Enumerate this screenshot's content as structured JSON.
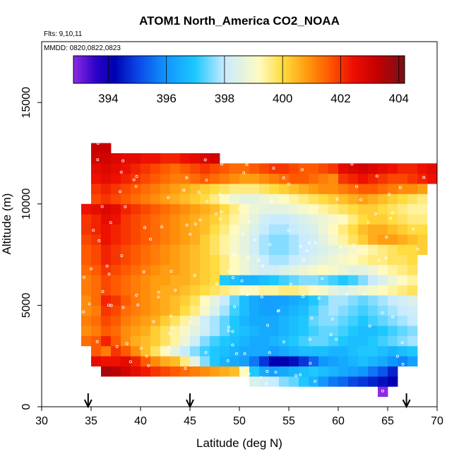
{
  "chart_data": {
    "type": "heatmap",
    "title": "ATOM1 North_America CO2_NOAA",
    "annotation_flights": "Flts: 9,10,11",
    "annotation_dates": "MMDD: 0820,0822,0823",
    "xlabel": "Latitude (deg N)",
    "ylabel": "Altitude (m)",
    "xlim": [
      30,
      70
    ],
    "ylim": [
      0,
      18000
    ],
    "x_ticks": [
      30,
      35,
      40,
      45,
      50,
      55,
      60,
      65,
      70
    ],
    "y_ticks": [
      0,
      5000,
      10000,
      15000
    ],
    "colorbar": {
      "range": [
        392.8,
        404.2
      ],
      "ticks": [
        394,
        396,
        398,
        400,
        402,
        404
      ],
      "stops": [
        {
          "v": 392.8,
          "c": "#8a2be2"
        },
        {
          "v": 393.6,
          "c": "#2a00c8"
        },
        {
          "v": 394.2,
          "c": "#0000b0"
        },
        {
          "v": 395.0,
          "c": "#0a46e6"
        },
        {
          "v": 396.0,
          "c": "#1096ff"
        },
        {
          "v": 397.0,
          "c": "#1ec8ff"
        },
        {
          "v": 398.0,
          "c": "#c8ebff"
        },
        {
          "v": 399.2,
          "c": "#fffac0"
        },
        {
          "v": 400.0,
          "c": "#ffdc40"
        },
        {
          "v": 400.8,
          "c": "#ff9e10"
        },
        {
          "v": 401.6,
          "c": "#ff5a00"
        },
        {
          "v": 402.4,
          "c": "#ee1000"
        },
        {
          "v": 403.2,
          "c": "#c80000"
        },
        {
          "v": 404.2,
          "c": "#781018"
        }
      ]
    },
    "arrows_latitude": [
      34.7,
      45.0,
      66.9
    ],
    "grid": {
      "lat_min": 34,
      "lat_step": 1,
      "alt_min": 500,
      "alt_step": 500,
      "layers": [
        {
          "alt": 500,
          "from": 64,
          "to": 65,
          "vals": [
            392.8
          ]
        },
        {
          "alt": 1000,
          "from": 51,
          "to": 66,
          "vals": [
            398.4,
            398.2,
            398,
            397.6,
            397.4,
            397,
            396.6,
            396,
            395.6,
            395.4,
            395,
            394.8,
            394.6,
            394.4,
            394.2
          ]
        },
        {
          "alt": 1500,
          "from": 36,
          "to": 66,
          "vals": [
            403.6,
            403.4,
            403,
            402.6,
            402.3,
            402,
            401.8,
            401.6,
            401.4,
            401.2,
            401,
            400.8,
            400.6,
            400.4,
            399.2,
            397,
            396.4,
            396.2,
            396.4,
            396.6,
            396.8,
            397,
            396.8,
            396.6,
            396.4,
            396.2,
            396,
            395.6,
            395.2,
            394.6
          ]
        },
        {
          "alt": 2000,
          "from": 35,
          "to": 68,
          "vals": [
            402.6,
            402.4,
            402.4,
            402.6,
            402.2,
            401.6,
            401,
            400.6,
            400.4,
            399.6,
            398.6,
            397.6,
            397,
            396.6,
            396.4,
            396.2,
            395.6,
            394.8,
            394.2,
            394.2,
            394.4,
            394.8,
            395.4,
            396,
            396.2,
            396.4,
            396.6,
            396.8,
            396.6,
            396.4,
            396,
            395.8,
            396.2
          ]
        },
        {
          "alt": 2500,
          "from": 35,
          "to": 68,
          "vals": [
            401.6,
            401.2,
            402,
            401.6,
            401,
            400.4,
            399.8,
            399.2,
            398.6,
            398,
            397.6,
            397.2,
            397,
            396.8,
            396.6,
            396.4,
            396.4,
            396.4,
            396.2,
            396.4,
            396.6,
            396.8,
            396.8,
            396.8,
            396.6,
            396.6,
            396.8,
            397,
            397,
            396.8,
            396.6,
            396.8,
            397
          ]
        },
        {
          "alt": 3000,
          "from": 34,
          "to": 68,
          "vals": [
            401.4,
            401.6,
            402.2,
            401.6,
            401,
            400.6,
            400.4,
            400.2,
            399.8,
            399.4,
            398.8,
            398.2,
            397.6,
            397.2,
            397,
            396.8,
            396.6,
            396.4,
            396.4,
            396.6,
            396.8,
            397,
            397.2,
            397.4,
            397.4,
            397.2,
            397,
            396.8,
            396.8,
            397,
            397.2,
            397.4,
            397.6,
            397.8
          ]
        },
        {
          "alt": 3500,
          "from": 34,
          "to": 68,
          "vals": [
            401,
            401.2,
            401.6,
            401.4,
            401,
            400.8,
            400.6,
            400.2,
            399.8,
            399.4,
            399,
            398.6,
            398.2,
            397.8,
            397.4,
            397,
            396.8,
            396.6,
            396.4,
            396.4,
            396.6,
            396.8,
            397,
            397.2,
            397.4,
            397.4,
            397.2,
            397,
            396.8,
            396.8,
            397,
            397.2,
            397.4,
            397.6
          ]
        },
        {
          "alt": 4000,
          "from": 34,
          "to": 68,
          "vals": [
            401.2,
            401.4,
            401.8,
            401.6,
            401.2,
            401,
            400.8,
            400.6,
            400.2,
            399.8,
            399.4,
            398.8,
            398.2,
            397.8,
            397.4,
            397,
            396.6,
            396.4,
            396.4,
            396.4,
            396.6,
            396.8,
            397,
            397.4,
            397.6,
            397.6,
            397.4,
            397.2,
            397,
            397.2,
            397.4,
            397.6,
            397.8,
            398
          ]
        },
        {
          "alt": 4500,
          "from": 34,
          "to": 68,
          "vals": [
            401,
            401.2,
            402,
            401.8,
            401.4,
            401.2,
            401,
            400.8,
            400.6,
            400.4,
            400,
            399.6,
            399,
            398.4,
            397.8,
            397.2,
            396.8,
            396.4,
            396.2,
            396.2,
            396.4,
            396.6,
            396.8,
            397.2,
            397.6,
            397.8,
            397.6,
            397.4,
            397.2,
            397.4,
            397.6,
            397.8,
            398,
            398.2
          ]
        },
        {
          "alt": 5000,
          "from": 34,
          "to": 68,
          "vals": [
            401,
            401.4,
            402.2,
            402,
            401.6,
            401.2,
            401,
            400.8,
            400.6,
            400.4,
            400.2,
            399.8,
            399.2,
            398.6,
            398,
            397.4,
            396.8,
            396.4,
            396.2,
            396.2,
            396.2,
            396.4,
            396.6,
            397,
            397.4,
            397.8,
            397.8,
            397.6,
            397.4,
            397.6,
            397.8,
            398,
            398.2,
            398.4
          ]
        },
        {
          "alt": 5500,
          "from": 34,
          "to": 68,
          "vals": [
            401.2,
            401.4,
            401.8,
            401.6,
            401.4,
            401.2,
            401,
            400.8,
            400.6,
            400.6,
            400.4,
            400.2,
            400,
            399.8,
            399.6,
            399.4,
            399.2,
            399.2,
            399.4,
            399.4,
            399.6,
            399.6,
            399.4,
            399.2,
            399,
            398.6,
            398.4,
            398.6,
            398.8,
            399,
            399.2,
            399.4,
            399.6,
            399.8
          ]
        },
        {
          "alt": 6000,
          "from": 34,
          "to": 68,
          "vals": [
            401.2,
            401.4,
            401.8,
            401.6,
            401.4,
            401.2,
            401,
            400.8,
            400.8,
            400.6,
            400.6,
            400.4,
            400.2,
            400,
            397,
            396.8,
            396.6,
            396.6,
            396.8,
            397,
            397.2,
            397.4,
            397.6,
            397.6,
            397.4,
            397.2,
            397,
            397.2,
            397.6,
            398,
            398.4,
            398.8,
            399.2,
            399.4
          ]
        },
        {
          "alt": 6500,
          "from": 34,
          "to": 68,
          "vals": [
            401.4,
            401.6,
            402,
            401.8,
            401.6,
            401.4,
            401.2,
            401,
            400.8,
            400.8,
            400.6,
            400.4,
            400.2,
            400,
            399.6,
            399.2,
            398.8,
            398.4,
            398.2,
            398.2,
            398.4,
            398.6,
            398.8,
            399,
            399.2,
            399,
            398.8,
            398.6,
            398.6,
            398.8,
            399.2,
            399.4,
            399.6,
            399.8
          ]
        },
        {
          "alt": 7000,
          "from": 34,
          "to": 68,
          "vals": [
            401.6,
            401.8,
            402.2,
            402,
            401.8,
            401.6,
            401.4,
            401.2,
            401,
            400.8,
            400.6,
            400.4,
            400.2,
            400,
            399.6,
            399.2,
            398.8,
            398.4,
            398,
            397.8,
            397.8,
            398,
            398.2,
            398.4,
            398.6,
            398.8,
            399,
            399.2,
            399.4,
            399.6,
            399.6,
            399.8,
            399.8,
            400
          ]
        },
        {
          "alt": 7500,
          "from": 34,
          "to": 69,
          "vals": [
            401.6,
            401.8,
            402.2,
            402,
            401.8,
            401.6,
            401.4,
            401.2,
            401,
            400.8,
            400.6,
            400.4,
            400.2,
            399.8,
            399.4,
            399,
            398.6,
            398.2,
            397.8,
            397.6,
            397.6,
            397.8,
            398,
            398.2,
            398.4,
            398.6,
            398.8,
            399,
            399.2,
            399.4,
            399.6,
            399.8,
            400,
            400,
            400.2
          ]
        },
        {
          "alt": 8000,
          "from": 34,
          "to": 69,
          "vals": [
            401.8,
            402,
            402.4,
            402.2,
            402,
            401.8,
            401.6,
            401.4,
            401.2,
            401,
            400.8,
            400.6,
            400.2,
            399.8,
            399.4,
            399,
            398.6,
            398.2,
            397.8,
            397.6,
            397.6,
            397.8,
            398,
            398.2,
            398.6,
            399,
            399.4,
            399.8,
            400.2,
            400.6,
            400.8,
            400.8,
            400.6,
            400.4,
            400.2
          ]
        },
        {
          "alt": 8500,
          "from": 34,
          "to": 69,
          "vals": [
            402,
            402.2,
            402.4,
            402.2,
            402,
            401.8,
            401.6,
            401.4,
            401.2,
            401,
            400.8,
            400.6,
            400.4,
            400,
            399.6,
            399.2,
            398.8,
            398.4,
            398,
            397.8,
            397.8,
            398,
            398.2,
            398.4,
            398.8,
            399.2,
            399.6,
            400,
            400.4,
            400.6,
            400.6,
            400.4,
            400.2,
            400,
            400
          ]
        },
        {
          "alt": 9000,
          "from": 34,
          "to": 69,
          "vals": [
            402,
            402.2,
            402.6,
            402.4,
            402,
            401.8,
            401.6,
            401.4,
            401.2,
            401,
            400.8,
            400.6,
            400.4,
            400.2,
            399.8,
            399.4,
            399,
            398.6,
            398.2,
            398,
            398,
            398.2,
            398.4,
            398.6,
            398.8,
            399,
            399.2,
            399.6,
            400,
            400.2,
            400.2,
            400,
            399.8,
            399.6,
            399.6
          ]
        },
        {
          "alt": 9500,
          "from": 34,
          "to": 69,
          "vals": [
            402.4,
            402.6,
            402.8,
            402.6,
            402.2,
            402,
            401.8,
            401.6,
            401.4,
            401.2,
            401,
            400.8,
            400.6,
            400.4,
            400,
            399.6,
            399.2,
            398.8,
            398.6,
            398.6,
            398.6,
            398.8,
            399,
            399.2,
            399.4,
            399.6,
            399.8,
            400,
            400.2,
            400.2,
            400,
            399.8,
            399.6,
            399.4,
            399.4
          ]
        },
        {
          "alt": 10000,
          "from": 35,
          "to": 69,
          "vals": [
            401.8,
            402,
            401.8,
            401.6,
            401.4,
            401.2,
            401,
            400.8,
            400.6,
            400.4,
            400.2,
            400,
            399.6,
            399.2,
            398.8,
            398.6,
            398.6,
            398.8,
            399,
            399.2,
            399.4,
            399.6,
            399.8,
            400,
            400.2,
            400.4,
            400.6,
            400.8,
            400.6,
            400.4,
            400.2,
            400,
            399.8,
            399.6
          ]
        },
        {
          "alt": 10500,
          "from": 35,
          "to": 69,
          "vals": [
            402,
            402.2,
            402,
            401.8,
            401.6,
            401.4,
            401.2,
            401,
            400.8,
            400.6,
            400.4,
            400.2,
            400,
            399.8,
            399.6,
            399.6,
            399.6,
            399.8,
            400,
            400.2,
            400.4,
            400.6,
            400.8,
            401,
            401,
            401.2,
            401.4,
            401.6,
            401.6,
            401.4,
            401.2,
            401,
            401,
            400.8
          ]
        },
        {
          "alt": 11000,
          "from": 35,
          "to": 70,
          "vals": [
            402.4,
            402.6,
            402.4,
            402.2,
            402,
            401.8,
            401.6,
            401.4,
            401.2,
            401.2,
            401.4,
            401.6,
            401.4,
            401.2,
            401,
            400.8,
            400.8,
            401,
            401.2,
            401.4,
            401.6,
            401.6,
            401.4,
            401.2,
            401,
            402,
            402.2,
            402.4,
            402.2,
            402,
            401.8,
            401.8,
            402,
            402.2,
            402.4
          ]
        },
        {
          "alt": 11500,
          "from": 35,
          "to": 70,
          "vals": [
            402.6,
            402.8,
            402.6,
            402.4,
            402.2,
            402,
            401.8,
            401.6,
            401.4,
            401.6,
            401.8,
            402,
            401.8,
            401.6,
            401.4,
            401.4,
            401.6,
            401.8,
            402,
            402,
            401.8,
            401.6,
            401.6,
            401.8,
            402,
            402.6,
            402.8,
            403,
            402.8,
            402.6,
            402.4,
            402.2,
            402.2,
            402.4,
            402.6
          ]
        },
        {
          "alt": 12000,
          "from": 35,
          "to": 48,
          "vals": [
            403,
            403,
            402.8,
            402.6,
            402.6,
            402.4,
            402.4,
            402.2,
            402.2,
            402.4,
            402.6,
            402.8,
            403
          ]
        },
        {
          "alt": 12500,
          "from": 35,
          "to": 37,
          "vals": [
            403.2,
            403.2
          ]
        }
      ]
    }
  }
}
